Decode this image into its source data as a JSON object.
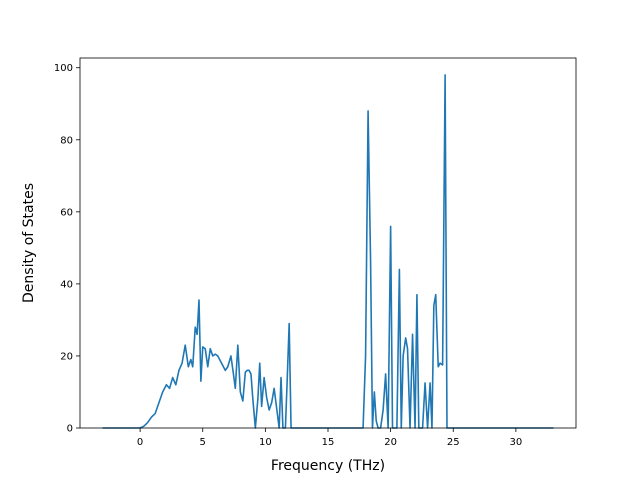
{
  "chart_data": {
    "type": "line",
    "title": "",
    "xlabel": "Frequency (THz)",
    "ylabel": "Density of States",
    "xlim": [
      -4.8,
      34.8
    ],
    "ylim": [
      0,
      102.7
    ],
    "xticks": [
      0,
      5,
      10,
      15,
      20,
      25,
      30
    ],
    "yticks": [
      0,
      20,
      40,
      60,
      80,
      100
    ],
    "grid": false,
    "legend": "none",
    "line_color": "#1f77b4",
    "series": [
      {
        "x": [
          -3.0,
          -0.5,
          0.0,
          0.3,
          0.6,
          0.9,
          1.2,
          1.5,
          1.8,
          2.1,
          2.35,
          2.6,
          2.85,
          3.1,
          3.35,
          3.6,
          3.85,
          4.05,
          4.2,
          4.4,
          4.55,
          4.7,
          4.85,
          5.0,
          5.2,
          5.4,
          5.6,
          5.8,
          6.0,
          6.2,
          6.5,
          6.8,
          7.0,
          7.25,
          7.45,
          7.6,
          7.8,
          8.0,
          8.2,
          8.4,
          8.55,
          8.7,
          8.85,
          9.0,
          9.2,
          9.4,
          9.55,
          9.7,
          9.9,
          10.1,
          10.3,
          10.5,
          10.7,
          10.9,
          11.1,
          11.25,
          11.4,
          11.6,
          11.75,
          11.9,
          12.05,
          12.2,
          12.35,
          12.5,
          12.8,
          13.0,
          17.6,
          17.8,
          18.0,
          18.2,
          18.4,
          18.55,
          18.7,
          18.85,
          19.0,
          19.2,
          19.4,
          19.6,
          19.8,
          20.0,
          20.15,
          20.3,
          20.5,
          20.7,
          20.85,
          21.0,
          21.2,
          21.35,
          21.55,
          21.75,
          21.95,
          22.1,
          22.25,
          22.4,
          22.55,
          22.75,
          22.95,
          23.15,
          23.3,
          23.45,
          23.6,
          23.8,
          23.95,
          24.15,
          24.35,
          24.5,
          24.65,
          24.85,
          25.0,
          26.0,
          33.0
        ],
        "y": [
          0,
          0,
          0,
          0.5,
          1.5,
          3,
          4,
          7,
          10,
          12,
          11,
          14,
          12,
          16,
          18,
          23,
          17,
          19,
          17,
          28,
          26,
          35.5,
          13,
          22.5,
          22,
          17,
          22,
          20,
          20.5,
          20,
          18,
          16,
          17,
          20,
          15,
          11,
          23,
          10,
          7.5,
          15.5,
          16,
          16,
          15,
          8,
          0,
          8,
          18,
          6,
          14,
          8.5,
          5,
          7,
          11,
          5.5,
          0,
          14,
          0,
          0,
          14,
          29,
          0,
          0,
          0,
          0,
          0,
          0,
          0,
          0,
          20,
          88,
          46,
          0,
          10,
          2,
          0,
          0,
          5,
          15,
          0,
          56,
          0,
          0,
          0,
          44,
          0,
          20,
          25,
          22,
          0,
          26,
          0,
          37,
          0,
          0,
          0,
          12.5,
          0,
          12.5,
          0,
          34,
          37,
          17,
          18,
          17.5,
          98,
          0,
          0,
          0,
          0,
          0,
          0
        ]
      }
    ]
  }
}
